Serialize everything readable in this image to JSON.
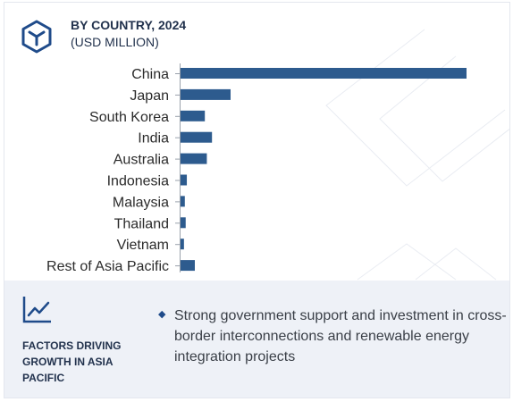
{
  "header": {
    "title": "BY COUNTRY, 2024",
    "subtitle": "(USD MILLION)",
    "icon": "hexagon-cube-logo-icon",
    "accent_color": "#1f4b8a"
  },
  "chart_data": {
    "type": "bar",
    "orientation": "horizontal",
    "title": "BY COUNTRY, 2024",
    "subtitle": "(USD MILLION)",
    "categories": [
      "China",
      "Japan",
      "South Korea",
      "India",
      "Australia",
      "Indonesia",
      "Malaysia",
      "Thailand",
      "Vietnam",
      "Rest of Asia Pacific"
    ],
    "values": [
      100,
      17.5,
      8.5,
      11,
      9.2,
      2.2,
      1.5,
      1.8,
      1.2,
      5
    ],
    "value_note": "relative bar lengths; no value axis or data labels shown",
    "bar_color": "#2d5b8e",
    "grid": false,
    "legend": "none"
  },
  "footer": {
    "icon": "trend-line-chart-icon",
    "factors_title": "FACTORS DRIVING GROWTH IN ASIA PACIFIC",
    "bullet_icon": "diamond-bullet-icon",
    "factor_text": "Strong government support and investment in cross-border interconnections and renewable energy integration projects"
  }
}
